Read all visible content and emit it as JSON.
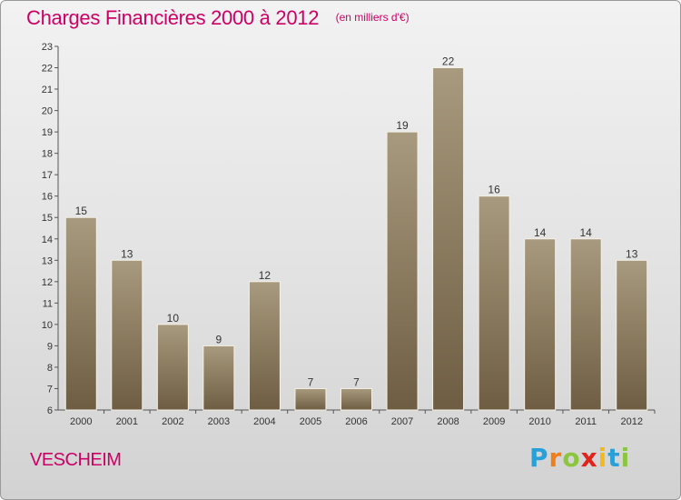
{
  "header": {
    "title": "Charges Financières 2000 à 2012",
    "unit": "(en milliers d'€)"
  },
  "footer": {
    "town": "VESCHEIM",
    "logo_letters": [
      "P",
      "r",
      "o",
      "x",
      "i",
      "t",
      "i"
    ]
  },
  "colors": {
    "title": "#cc0066",
    "bar_top": "#a89a7e",
    "bar_bottom": "#6e5d42"
  },
  "chart_data": {
    "type": "bar",
    "title": "Charges Financières 2000 à 2012",
    "subtitle": "(en milliers d'€)",
    "categories": [
      "2000",
      "2001",
      "2002",
      "2003",
      "2004",
      "2005",
      "2006",
      "2007",
      "2008",
      "2009",
      "2010",
      "2011",
      "2012"
    ],
    "values": [
      15,
      13,
      10,
      9,
      12,
      7,
      7,
      19,
      22,
      16,
      14,
      14,
      13
    ],
    "ylim": [
      6,
      23
    ],
    "yticks": [
      6,
      7,
      8,
      9,
      10,
      11,
      12,
      13,
      14,
      15,
      16,
      17,
      18,
      19,
      20,
      21,
      22,
      23
    ],
    "grid": false,
    "data_labels": true
  }
}
